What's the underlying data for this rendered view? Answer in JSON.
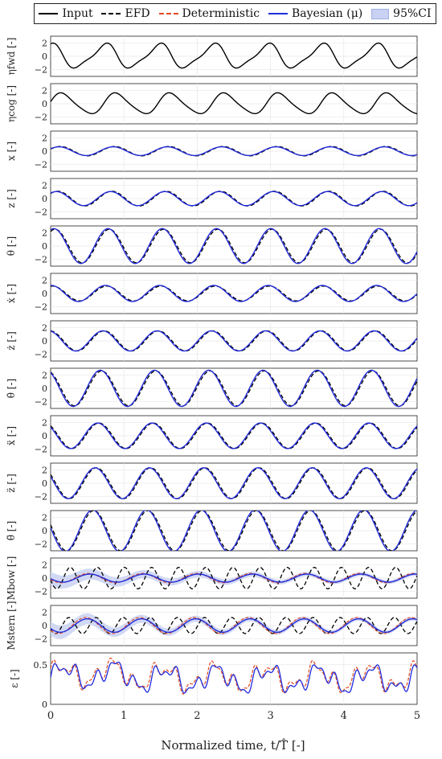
{
  "legend": {
    "input": "Input",
    "efd": "EFD",
    "deterministic": "Deterministic",
    "bayesian": "Bayesian (μ)",
    "ci": "95%CI"
  },
  "colors": {
    "input": "#000000",
    "efd": "#000000",
    "deterministic": "#e2481e",
    "bayesian": "#1f2bdc",
    "ci": "#c9d2f2",
    "grid": "#e6e6e6",
    "axis": "#222222"
  },
  "xaxis": {
    "label": "Normalized time, t/T̂ [-]",
    "ticks": [
      "0",
      "1",
      "2",
      "3",
      "4",
      "5"
    ]
  },
  "chart_data": [
    {
      "type": "line",
      "ylabel": "ηfwd [-]",
      "yticks": [
        "2",
        "0",
        "−2"
      ],
      "ylim": [
        -3,
        3
      ],
      "xlim": [
        0,
        5
      ],
      "grid": true,
      "series": [
        {
          "name": "Input",
          "amplitude": 1.7,
          "period": 0.72
        }
      ]
    },
    {
      "type": "line",
      "ylabel": "ηcog [-]",
      "yticks": [
        "2",
        "0",
        "−2"
      ],
      "ylim": [
        -3,
        3
      ],
      "xlim": [
        0,
        5
      ],
      "grid": true,
      "series": [
        {
          "name": "Input",
          "amplitude": 1.5,
          "period": 0.72
        }
      ]
    },
    {
      "type": "line",
      "ylabel": "x [-]",
      "yticks": [
        "2",
        "0",
        "−2"
      ],
      "ylim": [
        -3,
        3
      ],
      "xlim": [
        0,
        5
      ],
      "grid": true,
      "series": [
        {
          "name": "EFD",
          "amplitude": 0.7
        },
        {
          "name": "Deterministic",
          "amplitude": 0.65
        },
        {
          "name": "Bayesian (μ)",
          "amplitude": 0.65
        }
      ]
    },
    {
      "type": "line",
      "ylabel": "z [-]",
      "yticks": [
        "2",
        "0",
        "−2"
      ],
      "ylim": [
        -3,
        3
      ],
      "xlim": [
        0,
        5
      ],
      "grid": true,
      "series": [
        {
          "name": "EFD",
          "amplitude": 1.1
        },
        {
          "name": "Deterministic",
          "amplitude": 1.05
        },
        {
          "name": "Bayesian (μ)",
          "amplitude": 1.05
        }
      ]
    },
    {
      "type": "line",
      "ylabel": "θ [-]",
      "yticks": [
        "2",
        "0",
        "−2"
      ],
      "ylim": [
        -3,
        3
      ],
      "xlim": [
        0,
        5
      ],
      "grid": true,
      "series": [
        {
          "name": "EFD",
          "amplitude": 2.5
        },
        {
          "name": "Deterministic",
          "amplitude": 2.6
        },
        {
          "name": "Bayesian (μ)",
          "amplitude": 2.6
        }
      ]
    },
    {
      "type": "line",
      "ylabel": "ẋ [-]",
      "yticks": [
        "2",
        "0",
        "−2"
      ],
      "ylim": [
        -3,
        3
      ],
      "xlim": [
        0,
        5
      ],
      "grid": true,
      "series": [
        {
          "name": "EFD",
          "amplitude": 1.1
        },
        {
          "name": "Deterministic",
          "amplitude": 1.2
        },
        {
          "name": "Bayesian (μ)",
          "amplitude": 1.2
        }
      ]
    },
    {
      "type": "line",
      "ylabel": "ż [-]",
      "yticks": [
        "2",
        "0",
        "−2"
      ],
      "ylim": [
        -3,
        3
      ],
      "xlim": [
        0,
        5
      ],
      "grid": true,
      "series": [
        {
          "name": "EFD",
          "amplitude": 1.5
        },
        {
          "name": "Deterministic",
          "amplitude": 1.5
        },
        {
          "name": "Bayesian (μ)",
          "amplitude": 1.5
        }
      ]
    },
    {
      "type": "line",
      "ylabel": "θ̇ [-]",
      "yticks": [
        "2",
        "0",
        "−2"
      ],
      "ylim": [
        -3,
        3
      ],
      "xlim": [
        0,
        5
      ],
      "grid": true,
      "series": [
        {
          "name": "EFD",
          "amplitude": 2.6
        },
        {
          "name": "Deterministic",
          "amplitude": 2.7
        },
        {
          "name": "Bayesian (μ)",
          "amplitude": 2.7
        }
      ]
    },
    {
      "type": "line",
      "ylabel": "ẍ [-]",
      "yticks": [
        "2",
        "0",
        "−2"
      ],
      "ylim": [
        -3,
        3
      ],
      "xlim": [
        0,
        5
      ],
      "grid": true,
      "series": [
        {
          "name": "EFD",
          "amplitude": 1.9
        },
        {
          "name": "Deterministic",
          "amplitude": 1.9
        },
        {
          "name": "Bayesian (μ)",
          "amplitude": 1.9
        }
      ]
    },
    {
      "type": "line",
      "ylabel": "z̈ [-]",
      "yticks": [
        "2",
        "0",
        "−2"
      ],
      "ylim": [
        -3,
        3
      ],
      "xlim": [
        0,
        5
      ],
      "grid": true,
      "series": [
        {
          "name": "EFD",
          "amplitude": 2.3
        },
        {
          "name": "Deterministic",
          "amplitude": 2.3
        },
        {
          "name": "Bayesian (μ)",
          "amplitude": 2.3
        }
      ]
    },
    {
      "type": "line",
      "ylabel": "θ̈ [-]",
      "yticks": [
        "2",
        "0",
        "−2"
      ],
      "ylim": [
        -3,
        3
      ],
      "xlim": [
        0,
        5
      ],
      "grid": true,
      "series": [
        {
          "name": "EFD",
          "amplitude": 3.0
        },
        {
          "name": "Deterministic",
          "amplitude": 3.1
        },
        {
          "name": "Bayesian (μ)",
          "amplitude": 3.1
        }
      ]
    },
    {
      "type": "line",
      "ylabel": "Mbow [-]",
      "yticks": [
        "2",
        "0",
        "−2"
      ],
      "ylim": [
        -3,
        3
      ],
      "xlim": [
        0,
        5
      ],
      "grid": true,
      "series": [
        {
          "name": "EFD",
          "amplitude": 1.6
        },
        {
          "name": "Deterministic",
          "amplitude": 0.7
        },
        {
          "name": "Bayesian (μ)",
          "amplitude": 0.6
        },
        {
          "name": "95%CI"
        }
      ]
    },
    {
      "type": "line",
      "ylabel": "Mstern [-]",
      "yticks": [
        "2",
        "0",
        "−2"
      ],
      "ylim": [
        -3,
        3
      ],
      "xlim": [
        0,
        5
      ],
      "grid": true,
      "series": [
        {
          "name": "EFD",
          "amplitude": 1.2
        },
        {
          "name": "Deterministic",
          "amplitude": 1.2
        },
        {
          "name": "Bayesian (μ)",
          "amplitude": 1.0
        },
        {
          "name": "95%CI"
        }
      ]
    },
    {
      "type": "line",
      "ylabel": "ε [-]",
      "yticks": [
        "0.5",
        "0"
      ],
      "ylim": [
        0,
        0.65
      ],
      "xlim": [
        0,
        5
      ],
      "grid": true,
      "series": [
        {
          "name": "Deterministic",
          "range": [
            0.12,
            0.6
          ]
        },
        {
          "name": "Bayesian (μ)",
          "range": [
            0.12,
            0.6
          ]
        }
      ]
    }
  ]
}
